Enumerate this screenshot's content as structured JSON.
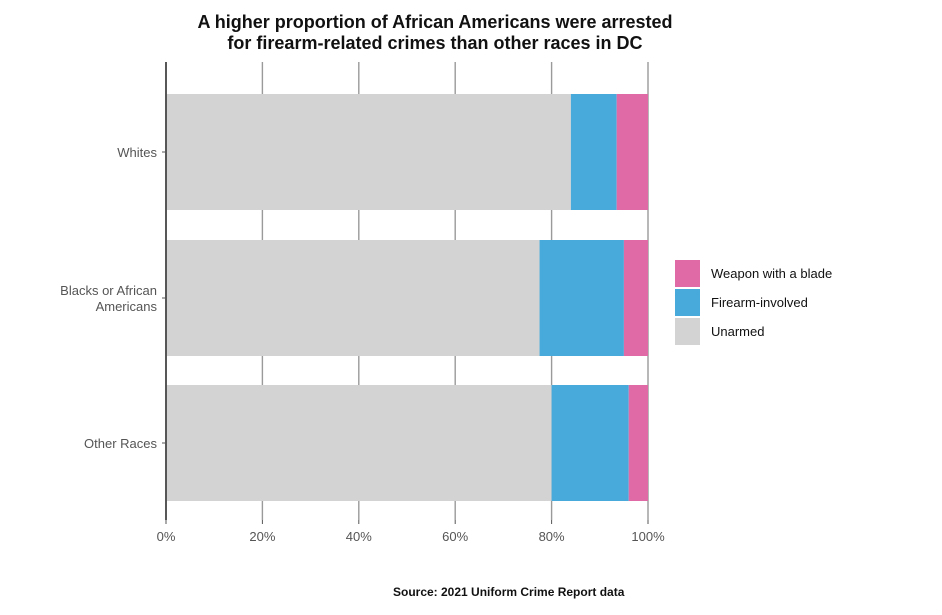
{
  "chart_data": {
    "type": "bar",
    "orientation": "horizontal",
    "stacked": true,
    "title": "A higher proportion of African Americans were arrested for firearm-related crimes than other races in DC",
    "title_lines": [
      "A higher proportion of African Americans were arrested",
      "for firearm-related crimes than other races in DC"
    ],
    "categories": [
      "Whites",
      "Blacks or African Americans",
      "Other Races"
    ],
    "category_label_lines": [
      [
        "Whites"
      ],
      [
        "Blacks or African",
        "Americans"
      ],
      [
        "Other Races"
      ]
    ],
    "series": [
      {
        "name": "Unarmed",
        "color": "#d3d3d3",
        "values": [
          84,
          77.5,
          80
        ]
      },
      {
        "name": "Firearm-involved",
        "color": "#47aadb",
        "values": [
          9.5,
          17.5,
          16
        ]
      },
      {
        "name": "Weapon with a blade",
        "color": "#e06aa6",
        "values": [
          6.5,
          5,
          4
        ]
      }
    ],
    "legend_order": [
      "Weapon with a blade",
      "Firearm-involved",
      "Unarmed"
    ],
    "xlim": [
      0,
      100
    ],
    "x_ticks": [
      0,
      20,
      40,
      60,
      80,
      100
    ],
    "x_tick_labels": [
      "0%",
      "20%",
      "40%",
      "60%",
      "80%",
      "100%"
    ],
    "grid": true,
    "legend_position": "right",
    "source": "Source: 2021 Uniform Crime Report data"
  }
}
